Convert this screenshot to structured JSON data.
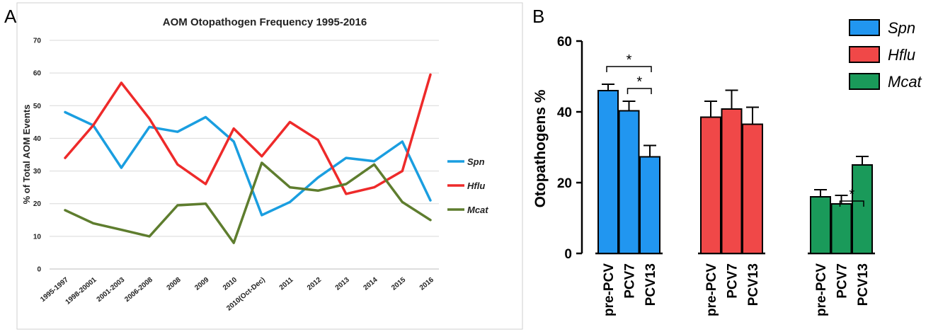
{
  "panels": {
    "a_label": "A",
    "b_label": "B"
  },
  "chart_data": [
    {
      "type": "line",
      "title": "AOM Otopathogen Frequency 1995-2016",
      "xlabel": "",
      "ylabel": "% of Total AOM Events",
      "ylim": [
        0,
        70
      ],
      "yticks": [
        "0",
        "10",
        "20",
        "30",
        "40",
        "50",
        "60",
        "70"
      ],
      "grid": true,
      "legend": "right",
      "categories": [
        "1995-1997",
        "1998-20001",
        "2001-2003",
        "2006-2008",
        "2008",
        "2009",
        "2010",
        "2010(Oct-Dec)",
        "2011",
        "2012",
        "2013",
        "2014",
        "2015",
        "2016"
      ],
      "series": [
        {
          "name": "Spn",
          "color": "#1a9ee0",
          "values": [
            48,
            44,
            31,
            43.5,
            42,
            46.5,
            39,
            16.5,
            20.5,
            28,
            34,
            33,
            39,
            21
          ]
        },
        {
          "name": "Hflu",
          "color": "#ee2a2a",
          "values": [
            34,
            44,
            57,
            46,
            32,
            26,
            43,
            34.5,
            45,
            39.5,
            23,
            25,
            30,
            59.5
          ]
        },
        {
          "name": "Mcat",
          "color": "#5e7d2e",
          "values": [
            18,
            14,
            12,
            10,
            19.5,
            20,
            8,
            32.5,
            25,
            24,
            26,
            32,
            20.5,
            15
          ]
        }
      ]
    },
    {
      "type": "bar",
      "title": "",
      "xlabel": "",
      "ylabel": "Otopathogens %",
      "ylim": [
        0,
        60
      ],
      "yticks": [
        "0",
        "20",
        "40",
        "60"
      ],
      "grid": false,
      "legend": "top-right",
      "groups": [
        "Spn",
        "Hflu",
        "Mcat"
      ],
      "categories": [
        "pre-PCV",
        "PCV7",
        "PCV13"
      ],
      "series": [
        {
          "name": "Spn",
          "color": "#2196f0",
          "values": [
            46,
            40.3,
            27.3
          ],
          "errors": [
            1.8,
            2.7,
            3.2
          ]
        },
        {
          "name": "Hflu",
          "color": "#f04848",
          "values": [
            38.5,
            40.8,
            36.5
          ],
          "errors": [
            4.5,
            5.3,
            4.8
          ]
        },
        {
          "name": "Mcat",
          "color": "#1a9a5a",
          "values": [
            16,
            14,
            25
          ],
          "errors": [
            2,
            2.4,
            2.4
          ]
        }
      ],
      "significance": [
        {
          "group": "Spn",
          "from": "pre-PCV",
          "to": "PCV13",
          "label": "*"
        },
        {
          "group": "Spn",
          "from": "PCV7",
          "to": "PCV13",
          "label": "*"
        },
        {
          "group": "Mcat",
          "from": "PCV7",
          "to": "PCV13",
          "label": "*"
        }
      ]
    }
  ]
}
